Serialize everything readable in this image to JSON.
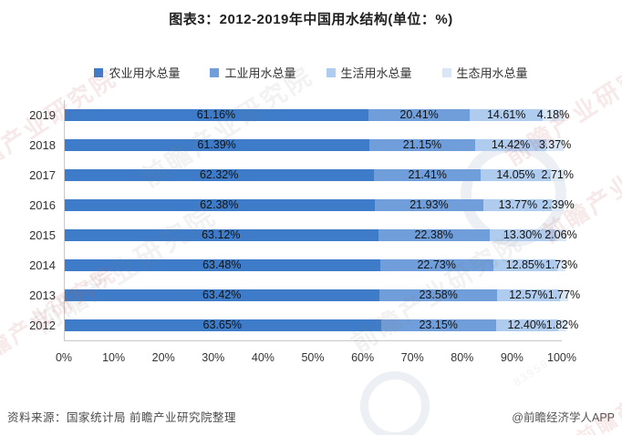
{
  "title": "图表3：2012-2019年中国用水结构(单位：%)",
  "chart_data": {
    "type": "bar",
    "subtype": "horizontal-stacked-100",
    "title": "图表3：2012-2019年中国用水结构(单位：%)",
    "unit": "%",
    "categories": [
      "2019",
      "2018",
      "2017",
      "2016",
      "2015",
      "2014",
      "2013",
      "2012"
    ],
    "series": [
      {
        "name": "农业用水总量",
        "color": "#3E7CC9",
        "values": [
          61.16,
          61.39,
          62.32,
          62.38,
          63.12,
          63.48,
          63.42,
          63.65
        ]
      },
      {
        "name": "工业用水总量",
        "color": "#6F9EDA",
        "values": [
          20.41,
          21.15,
          21.41,
          21.93,
          22.38,
          22.73,
          23.58,
          23.15
        ]
      },
      {
        "name": "生活用水总量",
        "color": "#AFCBED",
        "values": [
          14.61,
          14.42,
          14.05,
          13.77,
          13.3,
          12.85,
          12.57,
          12.4
        ]
      },
      {
        "name": "生态用水总量",
        "color": "#D9E6F6",
        "values": [
          4.18,
          3.37,
          2.71,
          2.39,
          2.06,
          1.73,
          1.77,
          1.82
        ]
      }
    ],
    "x_ticks": [
      "0%",
      "10%",
      "20%",
      "30%",
      "40%",
      "50%",
      "60%",
      "70%",
      "80%",
      "90%",
      "100%"
    ],
    "xlim": [
      0,
      100
    ],
    "grid": false,
    "legend_position": "top",
    "value_label_format": "0.00%"
  },
  "footer": {
    "source": "资料来源：国家统计局 前瞻产业研究院整理",
    "credit": "@前瞻经济学人APP"
  },
  "watermark": {
    "text": "前瞻产业研究院",
    "small_text": "839599"
  }
}
